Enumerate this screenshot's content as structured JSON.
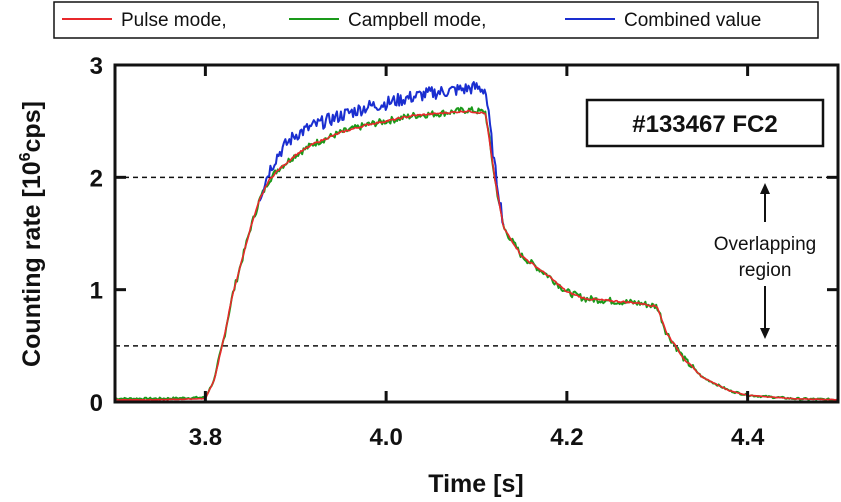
{
  "chart_data": {
    "type": "line",
    "title": "",
    "xlabel": "Time [s]",
    "ylabel_main": "Counting rate [10",
    "ylabel_sup": "6",
    "ylabel_tail": "cps]",
    "xlim": [
      3.7,
      4.5
    ],
    "ylim": [
      0,
      3
    ],
    "x_ticks": [
      3.8,
      4.0,
      4.2,
      4.4
    ],
    "x_tick_labels": [
      "3.8",
      "4.0",
      "4.2",
      "4.4"
    ],
    "y_ticks": [
      0,
      1,
      2,
      3
    ],
    "y_tick_labels": [
      "0",
      "1",
      "2",
      "3"
    ],
    "grid": false,
    "legend_position": "top",
    "legend": [
      {
        "label": "Pulse mode,",
        "color": "#e8282b"
      },
      {
        "label": "Campbell mode,",
        "color": "#1a9a1a"
      },
      {
        "label": "Combined value",
        "color": "#1a2ed0"
      }
    ],
    "reference_lines": [
      {
        "y": 2.0,
        "style": "dashed"
      },
      {
        "y": 0.5,
        "style": "dashed"
      }
    ],
    "annotation": {
      "line1": "Overlapping",
      "line2": "region",
      "y_range": [
        0.5,
        2.0
      ]
    },
    "shot_label": "#133467 FC2",
    "series": [
      {
        "name": "Campbell mode",
        "color": "#1a9a1a",
        "x": [
          3.7,
          3.75,
          3.8,
          3.81,
          3.82,
          3.83,
          3.84,
          3.85,
          3.86,
          3.87,
          3.88,
          3.9,
          3.92,
          3.95,
          3.98,
          4.0,
          4.03,
          4.06,
          4.09,
          4.11,
          4.12,
          4.13,
          4.15,
          4.18,
          4.2,
          4.22,
          4.25,
          4.28,
          4.3,
          4.31,
          4.33,
          4.35,
          4.38,
          4.4,
          4.45,
          4.5
        ],
        "y": [
          0.03,
          0.03,
          0.04,
          0.2,
          0.55,
          0.95,
          1.25,
          1.55,
          1.8,
          1.97,
          2.07,
          2.2,
          2.3,
          2.4,
          2.47,
          2.5,
          2.55,
          2.57,
          2.6,
          2.58,
          2.0,
          1.55,
          1.3,
          1.12,
          0.98,
          0.92,
          0.9,
          0.88,
          0.85,
          0.62,
          0.38,
          0.22,
          0.1,
          0.06,
          0.03,
          0.02
        ],
        "noise": 0.03
      },
      {
        "name": "Combined value",
        "color": "#1a2ed0",
        "x": [
          3.86,
          3.87,
          3.88,
          3.89,
          3.9,
          3.92,
          3.95,
          3.98,
          4.0,
          4.02,
          4.05,
          4.08,
          4.1,
          4.11,
          4.12,
          4.13
        ],
        "y": [
          1.82,
          2.05,
          2.2,
          2.3,
          2.38,
          2.46,
          2.55,
          2.63,
          2.66,
          2.7,
          2.75,
          2.78,
          2.8,
          2.78,
          2.1,
          1.58
        ],
        "noise": 0.06
      },
      {
        "name": "Pulse mode",
        "color": "#e8282b",
        "x": [
          3.7,
          3.75,
          3.8,
          3.81,
          3.82,
          3.83,
          3.84,
          3.85,
          3.86,
          3.87,
          3.88,
          3.9,
          3.92,
          3.95,
          3.98,
          4.0,
          4.03,
          4.06,
          4.09,
          4.11,
          4.12,
          4.13,
          4.15,
          4.18,
          4.2,
          4.22,
          4.25,
          4.28,
          4.3,
          4.31,
          4.33,
          4.35,
          4.38,
          4.4,
          4.45,
          4.5
        ],
        "y": [
          0.02,
          0.02,
          0.03,
          0.2,
          0.55,
          0.95,
          1.25,
          1.55,
          1.8,
          1.97,
          2.06,
          2.2,
          2.3,
          2.4,
          2.47,
          2.5,
          2.55,
          2.57,
          2.59,
          2.57,
          2.0,
          1.55,
          1.3,
          1.12,
          0.98,
          0.92,
          0.9,
          0.88,
          0.85,
          0.62,
          0.38,
          0.22,
          0.1,
          0.06,
          0.03,
          0.02
        ],
        "noise": 0.008
      }
    ]
  }
}
